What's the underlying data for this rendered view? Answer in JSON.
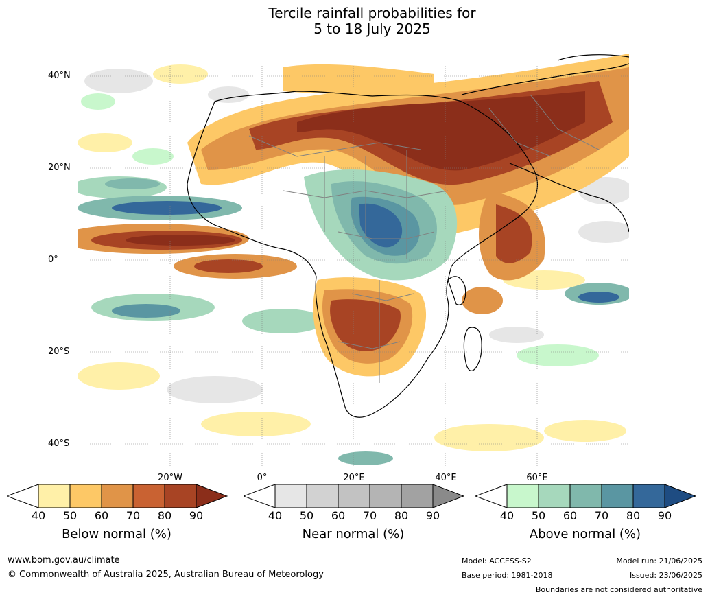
{
  "title": {
    "line1": "Tercile rainfall probabilities for",
    "line2": "5 to 18 July 2025"
  },
  "axes": {
    "lat_labels": [
      "40°N",
      "20°N",
      "0°",
      "20°S",
      "40°S"
    ],
    "lon_labels": [
      "20°W",
      "0°",
      "20°E",
      "40°E",
      "60°E"
    ]
  },
  "legends": [
    {
      "title": "Below normal (%)",
      "ticks": [
        "40",
        "50",
        "60",
        "70",
        "80",
        "90"
      ],
      "colors": [
        "#ffffff",
        "#fff0a8",
        "#fdc866",
        "#e09448",
        "#c96232",
        "#a84424",
        "#8b2e1a"
      ]
    },
    {
      "title": "Near normal (%)",
      "ticks": [
        "40",
        "50",
        "60",
        "70",
        "80",
        "90"
      ],
      "colors": [
        "#ffffff",
        "#e6e6e6",
        "#d2d2d2",
        "#c2c2c2",
        "#b4b4b4",
        "#a2a2a2",
        "#8a8a8a"
      ]
    },
    {
      "title": "Above normal (%)",
      "ticks": [
        "40",
        "50",
        "60",
        "70",
        "80",
        "90"
      ],
      "colors": [
        "#ffffff",
        "#c8f7cc",
        "#a6d8bc",
        "#80b8ac",
        "#5a96a2",
        "#34689a",
        "#1e4c82"
      ]
    }
  ],
  "footer": {
    "website": "www.bom.gov.au/climate",
    "copyright": "© Commonwealth of Australia 2025, Australian Bureau of Meteorology",
    "model": "Model: ACCESS-S2",
    "base_period": "Base period: 1981-2018",
    "model_run": "Model run: 21/06/2025",
    "issued": "Issued: 23/06/2025",
    "disclaimer": "Boundaries are not considered authoritative"
  }
}
